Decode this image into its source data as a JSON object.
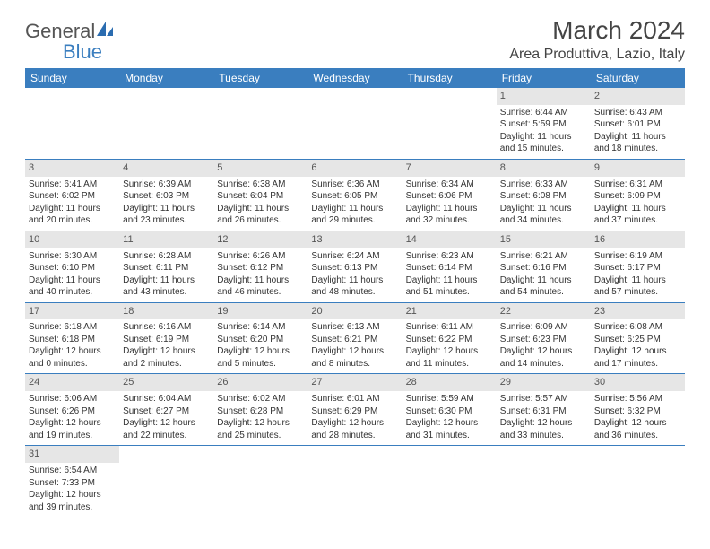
{
  "brand": {
    "general": "General",
    "blue": "Blue"
  },
  "title": "March 2024",
  "location": "Area Produttiva, Lazio, Italy",
  "colors": {
    "header_bg": "#3a7ebf",
    "header_text": "#ffffff",
    "daynum_bg": "#e6e6e6",
    "row_border": "#3a7ebf",
    "text": "#333333",
    "background": "#ffffff"
  },
  "day_names": [
    "Sunday",
    "Monday",
    "Tuesday",
    "Wednesday",
    "Thursday",
    "Friday",
    "Saturday"
  ],
  "weeks": [
    [
      {
        "day": null
      },
      {
        "day": null
      },
      {
        "day": null
      },
      {
        "day": null
      },
      {
        "day": null
      },
      {
        "day": 1,
        "sunrise": "Sunrise: 6:44 AM",
        "sunset": "Sunset: 5:59 PM",
        "daylight": "Daylight: 11 hours and 15 minutes."
      },
      {
        "day": 2,
        "sunrise": "Sunrise: 6:43 AM",
        "sunset": "Sunset: 6:01 PM",
        "daylight": "Daylight: 11 hours and 18 minutes."
      }
    ],
    [
      {
        "day": 3,
        "sunrise": "Sunrise: 6:41 AM",
        "sunset": "Sunset: 6:02 PM",
        "daylight": "Daylight: 11 hours and 20 minutes."
      },
      {
        "day": 4,
        "sunrise": "Sunrise: 6:39 AM",
        "sunset": "Sunset: 6:03 PM",
        "daylight": "Daylight: 11 hours and 23 minutes."
      },
      {
        "day": 5,
        "sunrise": "Sunrise: 6:38 AM",
        "sunset": "Sunset: 6:04 PM",
        "daylight": "Daylight: 11 hours and 26 minutes."
      },
      {
        "day": 6,
        "sunrise": "Sunrise: 6:36 AM",
        "sunset": "Sunset: 6:05 PM",
        "daylight": "Daylight: 11 hours and 29 minutes."
      },
      {
        "day": 7,
        "sunrise": "Sunrise: 6:34 AM",
        "sunset": "Sunset: 6:06 PM",
        "daylight": "Daylight: 11 hours and 32 minutes."
      },
      {
        "day": 8,
        "sunrise": "Sunrise: 6:33 AM",
        "sunset": "Sunset: 6:08 PM",
        "daylight": "Daylight: 11 hours and 34 minutes."
      },
      {
        "day": 9,
        "sunrise": "Sunrise: 6:31 AM",
        "sunset": "Sunset: 6:09 PM",
        "daylight": "Daylight: 11 hours and 37 minutes."
      }
    ],
    [
      {
        "day": 10,
        "sunrise": "Sunrise: 6:30 AM",
        "sunset": "Sunset: 6:10 PM",
        "daylight": "Daylight: 11 hours and 40 minutes."
      },
      {
        "day": 11,
        "sunrise": "Sunrise: 6:28 AM",
        "sunset": "Sunset: 6:11 PM",
        "daylight": "Daylight: 11 hours and 43 minutes."
      },
      {
        "day": 12,
        "sunrise": "Sunrise: 6:26 AM",
        "sunset": "Sunset: 6:12 PM",
        "daylight": "Daylight: 11 hours and 46 minutes."
      },
      {
        "day": 13,
        "sunrise": "Sunrise: 6:24 AM",
        "sunset": "Sunset: 6:13 PM",
        "daylight": "Daylight: 11 hours and 48 minutes."
      },
      {
        "day": 14,
        "sunrise": "Sunrise: 6:23 AM",
        "sunset": "Sunset: 6:14 PM",
        "daylight": "Daylight: 11 hours and 51 minutes."
      },
      {
        "day": 15,
        "sunrise": "Sunrise: 6:21 AM",
        "sunset": "Sunset: 6:16 PM",
        "daylight": "Daylight: 11 hours and 54 minutes."
      },
      {
        "day": 16,
        "sunrise": "Sunrise: 6:19 AM",
        "sunset": "Sunset: 6:17 PM",
        "daylight": "Daylight: 11 hours and 57 minutes."
      }
    ],
    [
      {
        "day": 17,
        "sunrise": "Sunrise: 6:18 AM",
        "sunset": "Sunset: 6:18 PM",
        "daylight": "Daylight: 12 hours and 0 minutes."
      },
      {
        "day": 18,
        "sunrise": "Sunrise: 6:16 AM",
        "sunset": "Sunset: 6:19 PM",
        "daylight": "Daylight: 12 hours and 2 minutes."
      },
      {
        "day": 19,
        "sunrise": "Sunrise: 6:14 AM",
        "sunset": "Sunset: 6:20 PM",
        "daylight": "Daylight: 12 hours and 5 minutes."
      },
      {
        "day": 20,
        "sunrise": "Sunrise: 6:13 AM",
        "sunset": "Sunset: 6:21 PM",
        "daylight": "Daylight: 12 hours and 8 minutes."
      },
      {
        "day": 21,
        "sunrise": "Sunrise: 6:11 AM",
        "sunset": "Sunset: 6:22 PM",
        "daylight": "Daylight: 12 hours and 11 minutes."
      },
      {
        "day": 22,
        "sunrise": "Sunrise: 6:09 AM",
        "sunset": "Sunset: 6:23 PM",
        "daylight": "Daylight: 12 hours and 14 minutes."
      },
      {
        "day": 23,
        "sunrise": "Sunrise: 6:08 AM",
        "sunset": "Sunset: 6:25 PM",
        "daylight": "Daylight: 12 hours and 17 minutes."
      }
    ],
    [
      {
        "day": 24,
        "sunrise": "Sunrise: 6:06 AM",
        "sunset": "Sunset: 6:26 PM",
        "daylight": "Daylight: 12 hours and 19 minutes."
      },
      {
        "day": 25,
        "sunrise": "Sunrise: 6:04 AM",
        "sunset": "Sunset: 6:27 PM",
        "daylight": "Daylight: 12 hours and 22 minutes."
      },
      {
        "day": 26,
        "sunrise": "Sunrise: 6:02 AM",
        "sunset": "Sunset: 6:28 PM",
        "daylight": "Daylight: 12 hours and 25 minutes."
      },
      {
        "day": 27,
        "sunrise": "Sunrise: 6:01 AM",
        "sunset": "Sunset: 6:29 PM",
        "daylight": "Daylight: 12 hours and 28 minutes."
      },
      {
        "day": 28,
        "sunrise": "Sunrise: 5:59 AM",
        "sunset": "Sunset: 6:30 PM",
        "daylight": "Daylight: 12 hours and 31 minutes."
      },
      {
        "day": 29,
        "sunrise": "Sunrise: 5:57 AM",
        "sunset": "Sunset: 6:31 PM",
        "daylight": "Daylight: 12 hours and 33 minutes."
      },
      {
        "day": 30,
        "sunrise": "Sunrise: 5:56 AM",
        "sunset": "Sunset: 6:32 PM",
        "daylight": "Daylight: 12 hours and 36 minutes."
      }
    ],
    [
      {
        "day": 31,
        "sunrise": "Sunrise: 6:54 AM",
        "sunset": "Sunset: 7:33 PM",
        "daylight": "Daylight: 12 hours and 39 minutes."
      },
      {
        "day": null
      },
      {
        "day": null
      },
      {
        "day": null
      },
      {
        "day": null
      },
      {
        "day": null
      },
      {
        "day": null
      }
    ]
  ]
}
